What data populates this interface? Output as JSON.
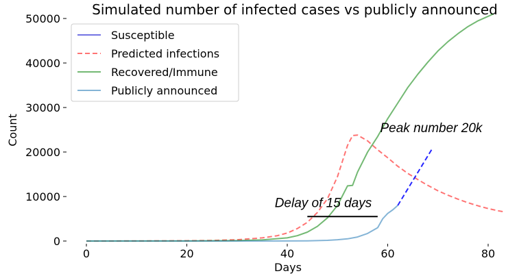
{
  "chart_data": {
    "type": "line",
    "title": "Simulated number of infected cases vs publicly announced",
    "xlabel": "Days",
    "ylabel": "Count",
    "xlim": [
      -2,
      83
    ],
    "ylim": [
      0,
      50000
    ],
    "xticks": [
      0,
      20,
      40,
      60,
      80
    ],
    "yticks": [
      0,
      10000,
      20000,
      30000,
      40000,
      50000
    ],
    "grid": false,
    "legend_position": "top-left",
    "series": [
      {
        "name": "Susceptible",
        "color": "#0000cc",
        "style": "solid",
        "x": [],
        "y": []
      },
      {
        "name": "Predicted infections",
        "color": "#ff0000",
        "style": "dashed",
        "x": [
          0,
          10,
          20,
          25,
          30,
          35,
          38,
          40,
          42,
          44,
          46,
          48,
          50,
          51,
          52,
          53,
          54,
          56,
          58,
          60,
          62,
          64,
          66,
          68,
          70,
          72,
          74,
          76,
          78,
          80,
          82,
          83
        ],
        "y": [
          0,
          10,
          60,
          130,
          300,
          700,
          1200,
          1800,
          2800,
          4200,
          6400,
          9500,
          14500,
          18000,
          21500,
          23700,
          23800,
          22500,
          20500,
          18700,
          16800,
          15200,
          13800,
          12500,
          11300,
          10300,
          9400,
          8600,
          7900,
          7300,
          6800,
          6600
        ]
      },
      {
        "name": "Recovered/Immune",
        "color": "#008000",
        "style": "solid",
        "x": [
          0,
          20,
          30,
          35,
          40,
          42,
          44,
          46,
          48,
          50,
          52,
          53,
          54,
          56,
          58,
          60,
          62,
          64,
          66,
          68,
          70,
          72,
          74,
          76,
          78,
          80,
          81
        ],
        "y": [
          0,
          20,
          100,
          250,
          700,
          1200,
          2000,
          3300,
          5200,
          8000,
          12400,
          12500,
          15500,
          20000,
          23500,
          27500,
          31000,
          34500,
          37500,
          40200,
          42700,
          44800,
          46600,
          48200,
          49500,
          50500,
          51000
        ]
      },
      {
        "name": "Publicly announced",
        "color": "#1f77b4",
        "style": "solid",
        "x": [
          0,
          30,
          40,
          44,
          48,
          50,
          52,
          54,
          56,
          58,
          59,
          60,
          61,
          62
        ],
        "y": [
          0,
          0,
          20,
          50,
          150,
          300,
          500,
          900,
          1700,
          3000,
          5000,
          6200,
          7000,
          8000
        ]
      },
      {
        "name": "",
        "color": "#0000ff",
        "style": "dashed",
        "x": [
          62,
          69
        ],
        "y": [
          8000,
          21000
        ]
      }
    ],
    "annotations": [
      {
        "text": "Peak number 20k",
        "x": 58.5,
        "y": 24500
      },
      {
        "text": "Delay of 15 days",
        "x": 37.5,
        "y": 7600,
        "line_x": [
          44,
          58
        ],
        "line_y": 5500
      }
    ]
  }
}
